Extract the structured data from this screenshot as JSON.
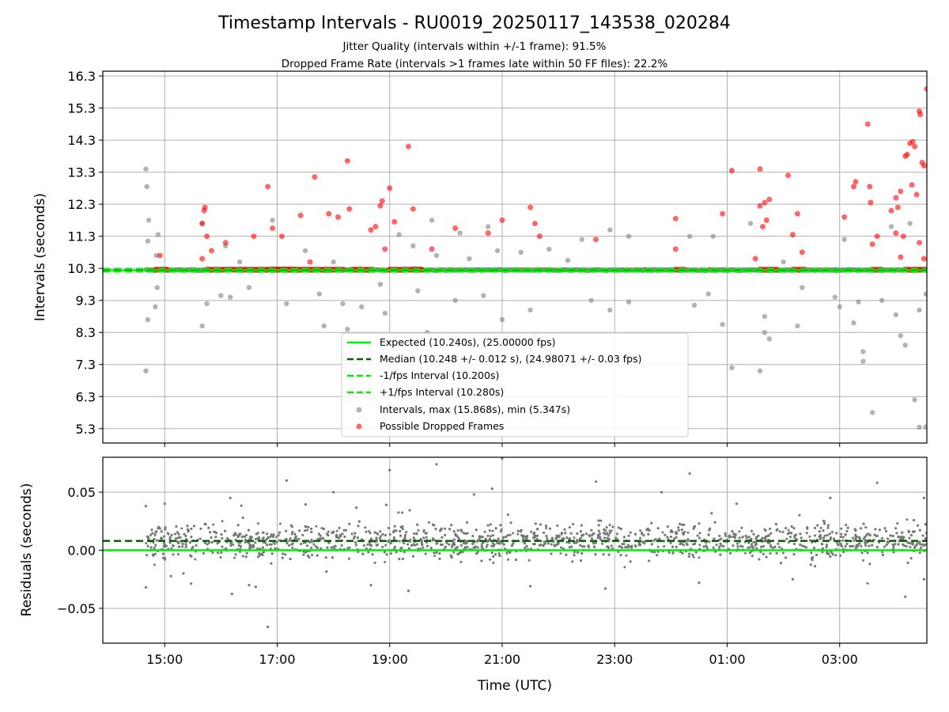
{
  "chart_data": [
    {
      "type": "scatter",
      "title": "Timestamp Intervals - RU0019_20250117_143538_020284",
      "subtitles": [
        "Jitter Quality (intervals within +/-1 frame): 91.5%",
        "Dropped Frame Rate (intervals >1 frames late within 50 FF files): 22.2%"
      ],
      "ylabel": "Intervals (seconds)",
      "xlabel": "",
      "xlim": [
        "2025-01-17T13:54",
        "2025-01-18T04:33"
      ],
      "ylim": [
        4.85,
        16.45
      ],
      "yticks": [
        "5.3",
        "6.3",
        "7.3",
        "8.3",
        "9.3",
        "10.3",
        "11.3",
        "12.3",
        "13.3",
        "14.3",
        "15.3",
        "16.3"
      ],
      "grid": true,
      "legend_position": "lower-center",
      "lines": [
        {
          "name": "Expected (10.240s), (25.00000 fps)",
          "y": 10.24,
          "style": "solid",
          "color": "#00ee00"
        },
        {
          "name": "Median (10.248 +/- 0.012 s), (24.98071 +/- 0.03 fps)",
          "y": 10.248,
          "style": "dashed",
          "color": "#006400"
        },
        {
          "name": "-1/fps Interval (10.200s)",
          "y": 10.2,
          "style": "dashed",
          "color": "#00ee00"
        },
        {
          "name": "+1/fps Interval (10.280s)",
          "y": 10.28,
          "style": "dashed",
          "color": "#00ee00"
        }
      ],
      "series": [
        {
          "name": "Intervals, max (15.868s), min (5.347s)",
          "color": "#808080",
          "points": [
            [
              "2025-01-17T14:40",
              13.4
            ],
            [
              "2025-01-17T14:41",
              12.85
            ],
            [
              "2025-01-17T14:42",
              11.15
            ],
            [
              "2025-01-17T14:43",
              11.8
            ],
            [
              "2025-01-17T14:42",
              8.7
            ],
            [
              "2025-01-17T14:40",
              7.1
            ],
            [
              "2025-01-17T14:53",
              11.35
            ],
            [
              "2025-01-17T14:52",
              9.7
            ],
            [
              "2025-01-17T14:50",
              9.1
            ],
            [
              "2025-01-17T14:51",
              10.7
            ],
            [
              "2025-01-17T15:40",
              8.5
            ],
            [
              "2025-01-17T15:45",
              9.2
            ],
            [
              "2025-01-17T15:40",
              11.7
            ],
            [
              "2025-01-17T16:05",
              11.0
            ],
            [
              "2025-01-17T16:10",
              9.4
            ],
            [
              "2025-01-17T16:00",
              9.45
            ],
            [
              "2025-01-17T16:20",
              10.5
            ],
            [
              "2025-01-17T16:30",
              9.7
            ],
            [
              "2025-01-17T16:55",
              11.8
            ],
            [
              "2025-01-17T17:10",
              9.2
            ],
            [
              "2025-01-17T17:30",
              10.85
            ],
            [
              "2025-01-17T17:50",
              8.5
            ],
            [
              "2025-01-17T17:45",
              9.5
            ],
            [
              "2025-01-17T18:00",
              10.5
            ],
            [
              "2025-01-17T18:10",
              9.2
            ],
            [
              "2025-01-17T18:15",
              8.4
            ],
            [
              "2025-01-17T18:20",
              6.9
            ],
            [
              "2025-01-17T18:30",
              9.1
            ],
            [
              "2025-01-17T18:50",
              9.8
            ],
            [
              "2025-01-17T18:55",
              8.9
            ],
            [
              "2025-01-17T19:00",
              8.0
            ],
            [
              "2025-01-17T19:10",
              11.35
            ],
            [
              "2025-01-17T19:25",
              11.0
            ],
            [
              "2025-01-17T19:30",
              9.6
            ],
            [
              "2025-01-17T19:40",
              8.3
            ],
            [
              "2025-01-17T19:45",
              11.8
            ],
            [
              "2025-01-17T19:50",
              10.7
            ],
            [
              "2025-01-17T20:10",
              9.3
            ],
            [
              "2025-01-17T20:15",
              11.4
            ],
            [
              "2025-01-17T20:25",
              10.6
            ],
            [
              "2025-01-17T20:40",
              9.45
            ],
            [
              "2025-01-17T20:45",
              11.6
            ],
            [
              "2025-01-17T20:55",
              10.85
            ],
            [
              "2025-01-17T21:00",
              8.7
            ],
            [
              "2025-01-17T21:20",
              10.8
            ],
            [
              "2025-01-17T21:30",
              9.0
            ],
            [
              "2025-01-17T21:35",
              8.2
            ],
            [
              "2025-01-17T21:50",
              10.9
            ],
            [
              "2025-01-17T22:10",
              10.55
            ],
            [
              "2025-01-17T22:25",
              11.2
            ],
            [
              "2025-01-17T22:35",
              9.3
            ],
            [
              "2025-01-17T22:55",
              11.5
            ],
            [
              "2025-01-17T22:55",
              9.0
            ],
            [
              "2025-01-17T23:15",
              11.3
            ],
            [
              "2025-01-17T23:15",
              9.25
            ],
            [
              "2025-01-18T00:20",
              11.3
            ],
            [
              "2025-01-18T00:25",
              9.15
            ],
            [
              "2025-01-18T00:40",
              9.5
            ],
            [
              "2025-01-18T00:45",
              11.3
            ],
            [
              "2025-01-18T00:55",
              8.55
            ],
            [
              "2025-01-18T01:05",
              7.2
            ],
            [
              "2025-01-18T01:25",
              11.7
            ],
            [
              "2025-01-18T01:35",
              7.1
            ],
            [
              "2025-01-18T01:40",
              8.3
            ],
            [
              "2025-01-18T01:40",
              8.8
            ],
            [
              "2025-01-18T01:45",
              8.1
            ],
            [
              "2025-01-18T02:00",
              10.5
            ],
            [
              "2025-01-18T02:15",
              8.5
            ],
            [
              "2025-01-18T02:20",
              9.7
            ],
            [
              "2025-01-18T02:55",
              9.4
            ],
            [
              "2025-01-18T03:00",
              9.1
            ],
            [
              "2025-01-18T03:05",
              11.2
            ],
            [
              "2025-01-18T03:15",
              8.6
            ],
            [
              "2025-01-18T03:20",
              9.25
            ],
            [
              "2025-01-18T03:25",
              7.7
            ],
            [
              "2025-01-18T03:25",
              7.4
            ],
            [
              "2025-01-18T03:35",
              5.8
            ],
            [
              "2025-01-18T03:45",
              9.3
            ],
            [
              "2025-01-18T03:55",
              11.6
            ],
            [
              "2025-01-18T04:00",
              8.85
            ],
            [
              "2025-01-18T04:05",
              8.2
            ],
            [
              "2025-01-18T04:10",
              7.9
            ],
            [
              "2025-01-18T04:15",
              11.7
            ],
            [
              "2025-01-18T04:20",
              6.2
            ],
            [
              "2025-01-18T04:25",
              9.0
            ],
            [
              "2025-01-18T04:25",
              5.347
            ],
            [
              "2025-01-18T04:32",
              5.35
            ],
            [
              "2025-01-18T04:32",
              9.5
            ]
          ]
        },
        {
          "name": "Possible Dropped Frames",
          "color": "#ff0000",
          "points": [
            [
              "2025-01-17T14:55",
              10.7
            ],
            [
              "2025-01-17T15:40",
              11.7
            ],
            [
              "2025-01-17T15:42",
              12.1
            ],
            [
              "2025-01-17T15:43",
              12.2
            ],
            [
              "2025-01-17T15:45",
              11.3
            ],
            [
              "2025-01-17T15:50",
              10.85
            ],
            [
              "2025-01-17T15:40",
              10.6
            ],
            [
              "2025-01-17T16:05",
              11.1
            ],
            [
              "2025-01-17T16:35",
              11.3
            ],
            [
              "2025-01-17T16:55",
              11.55
            ],
            [
              "2025-01-17T16:50",
              12.85
            ],
            [
              "2025-01-17T17:05",
              11.3
            ],
            [
              "2025-01-17T17:25",
              11.95
            ],
            [
              "2025-01-17T17:35",
              10.5
            ],
            [
              "2025-01-17T17:40",
              13.15
            ],
            [
              "2025-01-17T17:55",
              12.0
            ],
            [
              "2025-01-17T18:05",
              11.9
            ],
            [
              "2025-01-17T18:15",
              13.65
            ],
            [
              "2025-01-17T18:17",
              12.15
            ],
            [
              "2025-01-17T18:40",
              11.5
            ],
            [
              "2025-01-17T18:45",
              11.6
            ],
            [
              "2025-01-17T18:50",
              12.25
            ],
            [
              "2025-01-17T18:52",
              12.4
            ],
            [
              "2025-01-17T19:00",
              12.8
            ],
            [
              "2025-01-17T19:05",
              11.75
            ],
            [
              "2025-01-17T18:55",
              10.9
            ],
            [
              "2025-01-17T19:20",
              14.1
            ],
            [
              "2025-01-17T19:25",
              12.15
            ],
            [
              "2025-01-17T19:45",
              10.9
            ],
            [
              "2025-01-17T20:10",
              11.55
            ],
            [
              "2025-01-17T20:45",
              11.4
            ],
            [
              "2025-01-17T21:00",
              11.8
            ],
            [
              "2025-01-17T21:30",
              12.2
            ],
            [
              "2025-01-17T21:35",
              11.7
            ],
            [
              "2025-01-17T21:40",
              11.3
            ],
            [
              "2025-01-17T22:40",
              11.2
            ],
            [
              "2025-01-18T00:05",
              11.85
            ],
            [
              "2025-01-18T00:05",
              10.9
            ],
            [
              "2025-01-18T00:55",
              12.0
            ],
            [
              "2025-01-18T01:05",
              13.35
            ],
            [
              "2025-01-18T01:35",
              13.4
            ],
            [
              "2025-01-18T01:35",
              12.25
            ],
            [
              "2025-01-18T01:40",
              12.35
            ],
            [
              "2025-01-18T01:45",
              12.45
            ],
            [
              "2025-01-18T01:42",
              11.8
            ],
            [
              "2025-01-18T01:38",
              11.6
            ],
            [
              "2025-01-18T01:30",
              10.6
            ],
            [
              "2025-01-18T02:05",
              13.2
            ],
            [
              "2025-01-18T02:10",
              11.35
            ],
            [
              "2025-01-18T02:15",
              12.0
            ],
            [
              "2025-01-18T02:20",
              10.8
            ],
            [
              "2025-01-18T03:05",
              11.9
            ],
            [
              "2025-01-18T03:15",
              12.85
            ],
            [
              "2025-01-18T03:17",
              13.0
            ],
            [
              "2025-01-18T03:30",
              14.8
            ],
            [
              "2025-01-18T03:32",
              12.85
            ],
            [
              "2025-01-18T03:33",
              12.35
            ],
            [
              "2025-01-18T03:35",
              11.05
            ],
            [
              "2025-01-18T03:40",
              11.3
            ],
            [
              "2025-01-18T03:55",
              12.1
            ],
            [
              "2025-01-18T04:00",
              12.5
            ],
            [
              "2025-01-18T04:00",
              11.4
            ],
            [
              "2025-01-18T04:02",
              12.2
            ],
            [
              "2025-01-18T04:05",
              12.7
            ],
            [
              "2025-01-18T04:05",
              10.65
            ],
            [
              "2025-01-18T04:08",
              11.3
            ],
            [
              "2025-01-18T04:10",
              13.8
            ],
            [
              "2025-01-18T04:12",
              13.85
            ],
            [
              "2025-01-18T04:15",
              14.2
            ],
            [
              "2025-01-18T04:17",
              12.9
            ],
            [
              "2025-01-18T04:18",
              14.25
            ],
            [
              "2025-01-18T04:20",
              14.1
            ],
            [
              "2025-01-18T04:22",
              12.6
            ],
            [
              "2025-01-18T04:25",
              15.2
            ],
            [
              "2025-01-18T04:26",
              15.1
            ],
            [
              "2025-01-18T04:28",
              13.6
            ],
            [
              "2025-01-18T04:30",
              13.5
            ],
            [
              "2025-01-18T04:33",
              15.9
            ],
            [
              "2025-01-18T04:25",
              11.1
            ],
            [
              "2025-01-18T04:30",
              10.6
            ]
          ]
        }
      ]
    },
    {
      "type": "scatter",
      "title": "",
      "xlabel": "Time (UTC)",
      "ylabel": "Residuals (seconds)",
      "xlim": [
        "2025-01-17T13:54",
        "2025-01-18T04:33"
      ],
      "ylim": [
        -0.08,
        0.08
      ],
      "yticks": [
        "−0.05",
        "0.00",
        "0.05"
      ],
      "xticks": [
        "15:00",
        "17:00",
        "19:00",
        "21:00",
        "23:00",
        "01:00",
        "03:00"
      ],
      "grid": true,
      "lines": [
        {
          "name": "Expected",
          "y": 0.0,
          "style": "solid",
          "color": "#00ee00"
        },
        {
          "name": "Median",
          "y": 0.008,
          "style": "dashed",
          "color": "#006400"
        }
      ],
      "series": [
        {
          "color": "#808080",
          "sampled_points": [
            [
              "2025-01-17T14:40",
              0.038
            ],
            [
              "2025-01-17T14:40",
              -0.032
            ],
            [
              "2025-01-17T15:00",
              0.04
            ],
            [
              "2025-01-17T15:20",
              -0.02
            ],
            [
              "2025-01-17T16:10",
              0.045
            ],
            [
              "2025-01-17T16:30",
              -0.03
            ],
            [
              "2025-01-17T17:10",
              0.06
            ],
            [
              "2025-01-17T16:50",
              -0.066
            ],
            [
              "2025-01-17T18:00",
              0.05
            ],
            [
              "2025-01-17T18:40",
              -0.03
            ],
            [
              "2025-01-17T19:00",
              0.069
            ],
            [
              "2025-01-17T19:20",
              -0.035
            ],
            [
              "2025-01-17T19:50",
              0.074
            ],
            [
              "2025-01-17T20:30",
              0.048
            ],
            [
              "2025-01-17T21:00",
              0.079
            ],
            [
              "2025-01-17T21:30",
              -0.031
            ],
            [
              "2025-01-17T22:40",
              0.059
            ],
            [
              "2025-01-17T22:50",
              -0.033
            ],
            [
              "2025-01-17T23:50",
              0.05
            ],
            [
              "2025-01-18T00:20",
              0.066
            ],
            [
              "2025-01-18T00:30",
              -0.028
            ],
            [
              "2025-01-18T01:10",
              0.04
            ],
            [
              "2025-01-18T02:10",
              -0.025
            ],
            [
              "2025-01-18T02:50",
              0.045
            ],
            [
              "2025-01-18T03:40",
              0.058
            ],
            [
              "2025-01-18T04:10",
              -0.04
            ],
            [
              "2025-01-18T04:30",
              0.045
            ],
            [
              "2025-01-18T04:30",
              -0.025
            ]
          ]
        }
      ]
    }
  ]
}
